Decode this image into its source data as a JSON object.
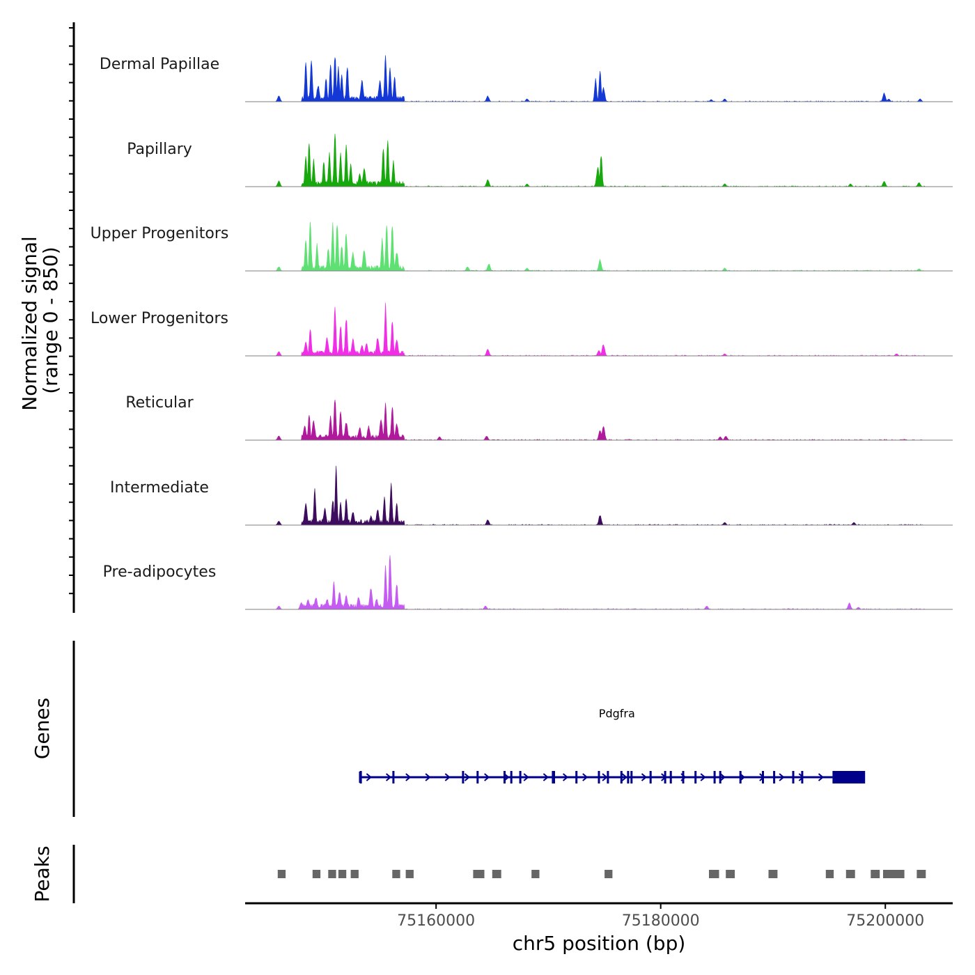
{
  "chart_data": {
    "type": "area",
    "title": "",
    "region": {
      "chromosome": "chr5",
      "start": 75143000,
      "end": 75206000
    },
    "ylabel": "Normalized signal\n(range 0 - 850)",
    "ylim": [
      0,
      850
    ],
    "xlabel": "chr5 position (bp)",
    "xticks": [
      75160000,
      75180000,
      75200000
    ],
    "xtick_labels": [
      "75160000",
      "75180000",
      "75200000"
    ],
    "series": [
      {
        "name": "Dermal Papillae",
        "color": "#1338d6",
        "peaks": [
          [
            75146000,
            80
          ],
          [
            75148400,
            560
          ],
          [
            75148900,
            640
          ],
          [
            75149500,
            230
          ],
          [
            75150200,
            330
          ],
          [
            75150600,
            560
          ],
          [
            75151000,
            680
          ],
          [
            75151300,
            500
          ],
          [
            75151600,
            420
          ],
          [
            75152100,
            520
          ],
          [
            75153400,
            300
          ],
          [
            75155000,
            300
          ],
          [
            75155500,
            650
          ],
          [
            75155900,
            520
          ],
          [
            75156300,
            370
          ],
          [
            75164600,
            80
          ],
          [
            75168100,
            40
          ],
          [
            75174200,
            320
          ],
          [
            75174600,
            440
          ],
          [
            75174900,
            200
          ],
          [
            75184500,
            30
          ],
          [
            75185700,
            40
          ],
          [
            75199900,
            120
          ],
          [
            75200300,
            40
          ],
          [
            75203100,
            40
          ]
        ]
      },
      {
        "name": "Papillary",
        "color": "#16a80c",
        "peaks": [
          [
            75146000,
            80
          ],
          [
            75148400,
            470
          ],
          [
            75148700,
            620
          ],
          [
            75149100,
            380
          ],
          [
            75150000,
            350
          ],
          [
            75150500,
            470
          ],
          [
            75151000,
            780
          ],
          [
            75151500,
            500
          ],
          [
            75152000,
            580
          ],
          [
            75152400,
            330
          ],
          [
            75153200,
            180
          ],
          [
            75153600,
            250
          ],
          [
            75155300,
            560
          ],
          [
            75155700,
            630
          ],
          [
            75156200,
            370
          ],
          [
            75164600,
            100
          ],
          [
            75168100,
            40
          ],
          [
            75174400,
            280
          ],
          [
            75174700,
            460
          ],
          [
            75199900,
            80
          ],
          [
            75203000,
            60
          ],
          [
            75196900,
            40
          ],
          [
            75185700,
            40
          ]
        ]
      },
      {
        "name": "Upper Progenitors",
        "color": "#5ee073",
        "peaks": [
          [
            75146000,
            60
          ],
          [
            75148400,
            460
          ],
          [
            75148800,
            680
          ],
          [
            75149400,
            380
          ],
          [
            75150400,
            330
          ],
          [
            75150800,
            680
          ],
          [
            75151200,
            720
          ],
          [
            75151600,
            380
          ],
          [
            75152000,
            560
          ],
          [
            75152600,
            260
          ],
          [
            75153600,
            300
          ],
          [
            75155200,
            450
          ],
          [
            75155600,
            660
          ],
          [
            75156100,
            660
          ],
          [
            75156500,
            280
          ],
          [
            75162800,
            60
          ],
          [
            75164700,
            100
          ],
          [
            75174600,
            160
          ],
          [
            75168100,
            40
          ],
          [
            75185700,
            40
          ],
          [
            75203000,
            30
          ]
        ]
      },
      {
        "name": "Lower Progenitors",
        "color": "#f02ee6",
        "peaks": [
          [
            75146000,
            60
          ],
          [
            75148400,
            200
          ],
          [
            75148800,
            410
          ],
          [
            75150300,
            260
          ],
          [
            75151000,
            720
          ],
          [
            75151500,
            460
          ],
          [
            75152000,
            560
          ],
          [
            75152600,
            240
          ],
          [
            75153400,
            150
          ],
          [
            75153800,
            180
          ],
          [
            75154800,
            260
          ],
          [
            75155500,
            720
          ],
          [
            75156100,
            530
          ],
          [
            75156500,
            240
          ],
          [
            75164600,
            100
          ],
          [
            75174500,
            80
          ],
          [
            75174900,
            160
          ],
          [
            75185700,
            30
          ],
          [
            75201000,
            30
          ]
        ]
      },
      {
        "name": "Reticular",
        "color": "#b0199c",
        "peaks": [
          [
            75146000,
            60
          ],
          [
            75148300,
            200
          ],
          [
            75148700,
            360
          ],
          [
            75149100,
            280
          ],
          [
            75150600,
            360
          ],
          [
            75151000,
            600
          ],
          [
            75151500,
            440
          ],
          [
            75152000,
            260
          ],
          [
            75153200,
            180
          ],
          [
            75154000,
            200
          ],
          [
            75155100,
            300
          ],
          [
            75155500,
            540
          ],
          [
            75156100,
            500
          ],
          [
            75156500,
            240
          ],
          [
            75160300,
            50
          ],
          [
            75164500,
            60
          ],
          [
            75174600,
            140
          ],
          [
            75174900,
            200
          ],
          [
            75185300,
            50
          ],
          [
            75185800,
            60
          ]
        ]
      },
      {
        "name": "Intermediate",
        "color": "#3d0c5e",
        "peaks": [
          [
            75146000,
            60
          ],
          [
            75148400,
            300
          ],
          [
            75149200,
            500
          ],
          [
            75150100,
            240
          ],
          [
            75150800,
            380
          ],
          [
            75151100,
            820
          ],
          [
            75151500,
            320
          ],
          [
            75152000,
            390
          ],
          [
            75152600,
            190
          ],
          [
            75154200,
            130
          ],
          [
            75154800,
            220
          ],
          [
            75155400,
            400
          ],
          [
            75156000,
            590
          ],
          [
            75156500,
            320
          ],
          [
            75164600,
            80
          ],
          [
            75174600,
            140
          ],
          [
            75185700,
            40
          ],
          [
            75197200,
            40
          ]
        ]
      },
      {
        "name": "Pre-adipocytes",
        "color": "#c55cf2",
        "peaks": [
          [
            75146000,
            50
          ],
          [
            75148000,
            100
          ],
          [
            75148600,
            140
          ],
          [
            75149300,
            170
          ],
          [
            75150300,
            150
          ],
          [
            75150900,
            420
          ],
          [
            75151400,
            260
          ],
          [
            75152000,
            190
          ],
          [
            75153100,
            180
          ],
          [
            75154200,
            300
          ],
          [
            75154700,
            150
          ],
          [
            75155500,
            600
          ],
          [
            75155900,
            850
          ],
          [
            75156500,
            380
          ],
          [
            75164400,
            50
          ],
          [
            75184100,
            50
          ],
          [
            75196800,
            90
          ],
          [
            75197600,
            30
          ]
        ]
      }
    ],
    "genes": [
      {
        "name": "Pdgfra",
        "strand": "+",
        "start": 75153200,
        "end": 75198200,
        "utr_start": 75195300,
        "exons": [
          75153300,
          75156200,
          75162400,
          75163700,
          75166100,
          75166700,
          75167500,
          75170400,
          75170500,
          75172500,
          75174500,
          75175300,
          75176500,
          75177100,
          75177400,
          75179100,
          75180400,
          75180900,
          75182000,
          75183100,
          75184800,
          75185300,
          75187100,
          75189100,
          75190100,
          75191800,
          75192600
        ]
      }
    ],
    "peaks_track": [
      [
        75145900,
        75146600
      ],
      [
        75149000,
        75149700
      ],
      [
        75150400,
        75151100
      ],
      [
        75151300,
        75152000
      ],
      [
        75152400,
        75153100
      ],
      [
        75156100,
        75156800
      ],
      [
        75157300,
        75158000
      ],
      [
        75163300,
        75164300
      ],
      [
        75165000,
        75165800
      ],
      [
        75168500,
        75169200
      ],
      [
        75175000,
        75175700
      ],
      [
        75184300,
        75185200
      ],
      [
        75185800,
        75186600
      ],
      [
        75189600,
        75190400
      ],
      [
        75194700,
        75195400
      ],
      [
        75196500,
        75197300
      ],
      [
        75198700,
        75199500
      ],
      [
        75199800,
        75201700
      ],
      [
        75202800,
        75203600
      ]
    ],
    "panel_titles": {
      "genes": "Genes",
      "peaks": "Peaks"
    }
  }
}
